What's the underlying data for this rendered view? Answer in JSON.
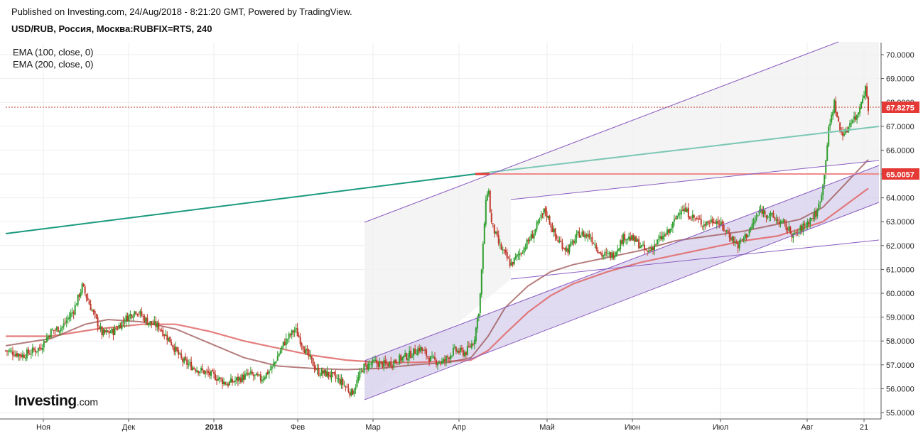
{
  "header": {
    "published": "Published on Investing.com, 24/Aug/2018 - 8:21:20 GMT, Powered by TradingView.",
    "symbol": "USD/RUB, Россия, Москва:RUBFIX=RTS, 240"
  },
  "logo": {
    "main": "Investing",
    "suffix": ".com"
  },
  "chart_data": {
    "type": "candlestick",
    "x_ticks": [
      "Ноя",
      "Дек",
      "2018",
      "Фев",
      "Мар",
      "Апр",
      "Май",
      "Июн",
      "Июл",
      "Авг",
      "21"
    ],
    "y_ticks": [
      "55.0000",
      "56.0000",
      "57.0000",
      "58.0000",
      "59.0000",
      "60.0000",
      "61.0000",
      "62.0000",
      "63.0000",
      "64.0000",
      "65.0000",
      "66.0000",
      "67.0000",
      "68.0000",
      "69.0000",
      "70.0000"
    ],
    "ylim": [
      54.9,
      70.6
    ],
    "legend": [
      "EMA (100, close, 0)",
      "EMA (200, close, 0)"
    ],
    "last_price_label": "67.8275",
    "level_label": "65.0057",
    "colors": {
      "up": "#26a69a",
      "candle_up": "#2e9e2e",
      "candle_down": "#c0392b",
      "ema100": "#9c5151",
      "ema200": "#e06666",
      "trend": "#1a9a7e",
      "channel": "#8a5cc0",
      "level": "#e05050",
      "last": "#e53935"
    },
    "price_path": [
      [
        0,
        57.6
      ],
      [
        3,
        57.4
      ],
      [
        6,
        57.7
      ],
      [
        8,
        58.4
      ],
      [
        10,
        58.6
      ],
      [
        12,
        59.3
      ],
      [
        13.5,
        60.3
      ],
      [
        15,
        59.4
      ],
      [
        17,
        58.3
      ],
      [
        19,
        58.4
      ],
      [
        21,
        58.9
      ],
      [
        23,
        59.3
      ],
      [
        25,
        58.8
      ],
      [
        27,
        58.6
      ],
      [
        29,
        58.0
      ],
      [
        31,
        57.2
      ],
      [
        33,
        56.9
      ],
      [
        35,
        56.7
      ],
      [
        37,
        56.5
      ],
      [
        39,
        56.2
      ],
      [
        41,
        56.4
      ],
      [
        43,
        56.6
      ],
      [
        45,
        56.4
      ],
      [
        47,
        56.9
      ],
      [
        49,
        57.9
      ],
      [
        51,
        58.5
      ],
      [
        53,
        57.5
      ],
      [
        55,
        56.7
      ],
      [
        57,
        56.6
      ],
      [
        59,
        56.3
      ],
      [
        61,
        55.8
      ],
      [
        63,
        56.9
      ],
      [
        65,
        57.1
      ],
      [
        67,
        57.0
      ],
      [
        69,
        57.2
      ],
      [
        71,
        57.4
      ],
      [
        73,
        57.7
      ],
      [
        75,
        57.2
      ],
      [
        77,
        57.1
      ],
      [
        79,
        57.6
      ],
      [
        81,
        57.5
      ],
      [
        82.5,
        58.0
      ],
      [
        83.5,
        59.5
      ],
      [
        84.5,
        63.5
      ],
      [
        85,
        64.6
      ],
      [
        85.5,
        63.0
      ],
      [
        87,
        62.0
      ],
      [
        89,
        61.2
      ],
      [
        91,
        61.8
      ],
      [
        93,
        62.5
      ],
      [
        95,
        63.5
      ],
      [
        97,
        62.3
      ],
      [
        99,
        61.8
      ],
      [
        101,
        62.5
      ],
      [
        103,
        62.4
      ],
      [
        105,
        61.6
      ],
      [
        107,
        61.6
      ],
      [
        109,
        62.4
      ],
      [
        111,
        62.2
      ],
      [
        113,
        61.7
      ],
      [
        115,
        62.2
      ],
      [
        117,
        62.6
      ],
      [
        119,
        63.6
      ],
      [
        121,
        63.2
      ],
      [
        123,
        62.9
      ],
      [
        125,
        63.1
      ],
      [
        127,
        62.6
      ],
      [
        129,
        62.0
      ],
      [
        131,
        62.6
      ],
      [
        133,
        63.5
      ],
      [
        135,
        63.2
      ],
      [
        137,
        62.9
      ],
      [
        139,
        62.4
      ],
      [
        141,
        62.9
      ],
      [
        143,
        63.4
      ],
      [
        144,
        64.5
      ],
      [
        145,
        66.8
      ],
      [
        146,
        68.0
      ],
      [
        147,
        66.8
      ],
      [
        148,
        66.7
      ],
      [
        149,
        67.3
      ],
      [
        150,
        67.4
      ],
      [
        151,
        68.3
      ],
      [
        151.5,
        68.6
      ],
      [
        152,
        67.8
      ]
    ],
    "ema100_path": [
      [
        0,
        57.8
      ],
      [
        8,
        58.1
      ],
      [
        14,
        58.7
      ],
      [
        18,
        58.9
      ],
      [
        24,
        58.8
      ],
      [
        30,
        58.5
      ],
      [
        36,
        57.9
      ],
      [
        42,
        57.3
      ],
      [
        48,
        56.95
      ],
      [
        54,
        56.85
      ],
      [
        60,
        56.8
      ],
      [
        66,
        56.85
      ],
      [
        72,
        57.0
      ],
      [
        78,
        57.1
      ],
      [
        82,
        57.3
      ],
      [
        85,
        58.2
      ],
      [
        88,
        59.4
      ],
      [
        92,
        60.3
      ],
      [
        96,
        60.9
      ],
      [
        100,
        61.2
      ],
      [
        106,
        61.5
      ],
      [
        112,
        61.8
      ],
      [
        118,
        62.2
      ],
      [
        124,
        62.4
      ],
      [
        130,
        62.6
      ],
      [
        136,
        62.9
      ],
      [
        140,
        63.1
      ],
      [
        144,
        63.6
      ],
      [
        148,
        64.6
      ],
      [
        152,
        65.6
      ]
    ],
    "ema200_path": [
      [
        0,
        58.2
      ],
      [
        8,
        58.2
      ],
      [
        16,
        58.5
      ],
      [
        24,
        58.7
      ],
      [
        30,
        58.7
      ],
      [
        36,
        58.4
      ],
      [
        42,
        58.0
      ],
      [
        48,
        57.7
      ],
      [
        54,
        57.4
      ],
      [
        60,
        57.2
      ],
      [
        66,
        57.1
      ],
      [
        72,
        57.1
      ],
      [
        78,
        57.15
      ],
      [
        82,
        57.2
      ],
      [
        85,
        57.6
      ],
      [
        88,
        58.3
      ],
      [
        92,
        59.2
      ],
      [
        96,
        59.9
      ],
      [
        100,
        60.4
      ],
      [
        106,
        60.9
      ],
      [
        112,
        61.3
      ],
      [
        118,
        61.6
      ],
      [
        124,
        61.9
      ],
      [
        130,
        62.2
      ],
      [
        136,
        62.4
      ],
      [
        140,
        62.7
      ],
      [
        144,
        63.0
      ],
      [
        148,
        63.7
      ],
      [
        152,
        64.4
      ]
    ]
  }
}
